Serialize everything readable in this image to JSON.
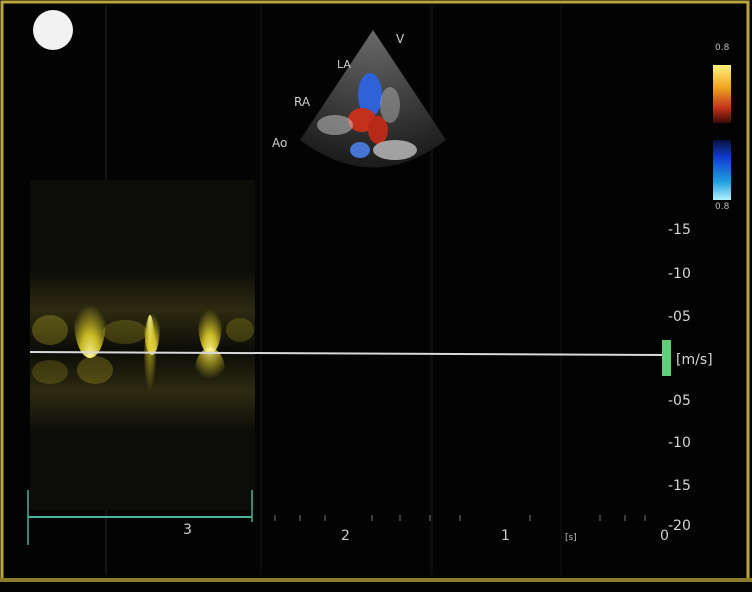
{
  "sector_labels": {
    "top": "V",
    "la": "LA",
    "ra": "RA",
    "ao": "Ao"
  },
  "color_bar": {
    "top_label": "0.8",
    "bottom_label": "0.8"
  },
  "velocity_scale": {
    "unit": "[m/s]",
    "ticks": [
      "-15",
      "-10",
      "-05",
      "-05",
      "-10",
      "-15",
      "-20"
    ]
  },
  "time_axis": {
    "labels": [
      "3",
      "2",
      "1",
      "[s]",
      "0"
    ]
  },
  "colors": {
    "doppler": "#e8d62a",
    "baseline": "#d9d9d9",
    "border": "#b9a640",
    "marker": "#5fcf7a",
    "time_axis": "#4fb0a0"
  }
}
